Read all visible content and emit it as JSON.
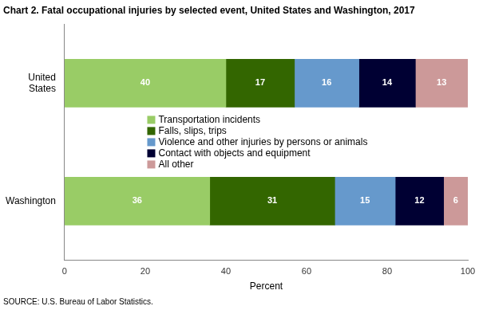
{
  "chart_data": {
    "type": "bar",
    "orientation": "horizontal",
    "stacked": true,
    "title": "Chart 2. Fatal occupational injuries by selected event, United States and Washington, 2017",
    "source": "SOURCE: U.S. Bureau of Labor Statistics.",
    "x_label": "Percent",
    "categories": [
      "United States",
      "Washington"
    ],
    "series": [
      {
        "name": "Transportation incidents",
        "color": "#99cc66",
        "values": [
          40,
          36
        ]
      },
      {
        "name": "Falls, slips, trips",
        "color": "#336600",
        "values": [
          17,
          31
        ]
      },
      {
        "name": "Violence and other injuries by persons or animals",
        "color": "#6699cc",
        "values": [
          16,
          15
        ]
      },
      {
        "name": "Contact with objects and equipment",
        "color": "#000033",
        "values": [
          14,
          12
        ]
      },
      {
        "name": "All other",
        "color": "#cc9999",
        "values": [
          13,
          6
        ]
      }
    ],
    "xlim": [
      0,
      100
    ],
    "xticks": [
      0,
      20,
      40,
      60,
      80,
      100
    ],
    "grid": false,
    "legend": "center",
    "data_labels": true
  }
}
